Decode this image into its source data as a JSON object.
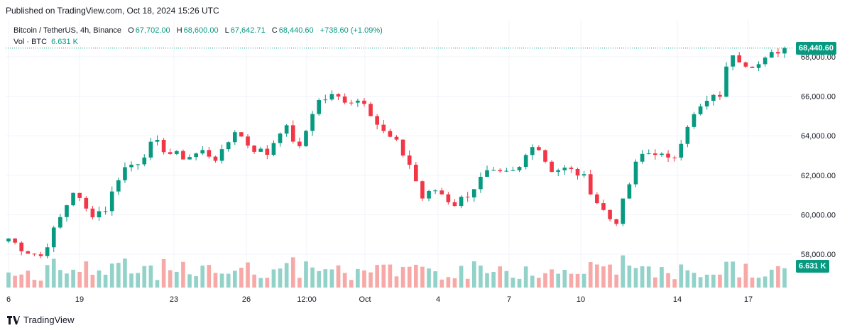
{
  "published": "Published on TradingView.com, Oct 18, 2024 15:26 UTC",
  "legend": {
    "symbol": "Bitcoin / TetherUS, 4h, Binance",
    "o_label": "O",
    "o": "67,702.00",
    "h_label": "H",
    "h": "68,600.00",
    "l_label": "L",
    "l": "67,642.71",
    "c_label": "C",
    "c": "68,440.60",
    "change": "+738.60 (+1.09%)",
    "vol_label": "Vol · BTC",
    "vol": "6.631 K"
  },
  "price_tag": "68,440.60",
  "volume_tag": "6.631 K",
  "footer_brand": "TradingView",
  "colors": {
    "up": "#089981",
    "down": "#f23645",
    "vol_up": "#92d2c9",
    "vol_down": "#f7a9a7",
    "grid": "#f0f3fa"
  },
  "chart_data": {
    "type": "candlestick",
    "price_axis_ticks": [
      "58,000.00",
      "60,000.00",
      "62,000.00",
      "64,000.00",
      "66,000.00",
      "68,000.00"
    ],
    "time_axis_ticks": [
      "6",
      "19",
      "23",
      "26",
      "12:00",
      "Oct",
      "4",
      "7",
      "10",
      "14",
      "17"
    ],
    "ylim": [
      57000,
      69000
    ],
    "last_close": 68440.6,
    "close_path": [
      {
        "t": 0,
        "c": 58800
      },
      {
        "t": 10,
        "c": 58200
      },
      {
        "t": 20,
        "c": 57900
      },
      {
        "t": 30,
        "c": 59500
      },
      {
        "t": 40,
        "c": 61200
      },
      {
        "t": 50,
        "c": 60000
      },
      {
        "t": 60,
        "c": 60300
      },
      {
        "t": 70,
        "c": 62300
      },
      {
        "t": 80,
        "c": 62700
      },
      {
        "t": 90,
        "c": 63700
      },
      {
        "t": 100,
        "c": 63100
      },
      {
        "t": 110,
        "c": 62900
      },
      {
        "t": 120,
        "c": 63200
      },
      {
        "t": 130,
        "c": 62800
      },
      {
        "t": 140,
        "c": 64300
      },
      {
        "t": 150,
        "c": 63400
      },
      {
        "t": 160,
        "c": 63100
      },
      {
        "t": 170,
        "c": 64600
      },
      {
        "t": 180,
        "c": 63300
      },
      {
        "t": 190,
        "c": 65700
      },
      {
        "t": 200,
        "c": 66000
      },
      {
        "t": 210,
        "c": 65800
      },
      {
        "t": 220,
        "c": 65800
      },
      {
        "t": 230,
        "c": 64300
      },
      {
        "t": 240,
        "c": 63600
      },
      {
        "t": 250,
        "c": 62300
      },
      {
        "t": 255,
        "c": 60800
      },
      {
        "t": 265,
        "c": 61300
      },
      {
        "t": 275,
        "c": 60500
      },
      {
        "t": 285,
        "c": 61100
      },
      {
        "t": 295,
        "c": 62100
      },
      {
        "t": 305,
        "c": 62000
      },
      {
        "t": 315,
        "c": 62200
      },
      {
        "t": 325,
        "c": 63800
      },
      {
        "t": 335,
        "c": 62300
      },
      {
        "t": 345,
        "c": 62300
      },
      {
        "t": 355,
        "c": 62000
      },
      {
        "t": 365,
        "c": 60500
      },
      {
        "t": 375,
        "c": 59500
      },
      {
        "t": 380,
        "c": 60600
      },
      {
        "t": 390,
        "c": 63000
      },
      {
        "t": 400,
        "c": 63200
      },
      {
        "t": 410,
        "c": 62600
      },
      {
        "t": 420,
        "c": 64600
      },
      {
        "t": 430,
        "c": 65600
      },
      {
        "t": 440,
        "c": 66100
      },
      {
        "t": 447,
        "c": 68300
      },
      {
        "t": 455,
        "c": 67700
      },
      {
        "t": 465,
        "c": 67600
      },
      {
        "t": 475,
        "c": 68300
      },
      {
        "t": 480,
        "c": 68440.6
      }
    ]
  }
}
